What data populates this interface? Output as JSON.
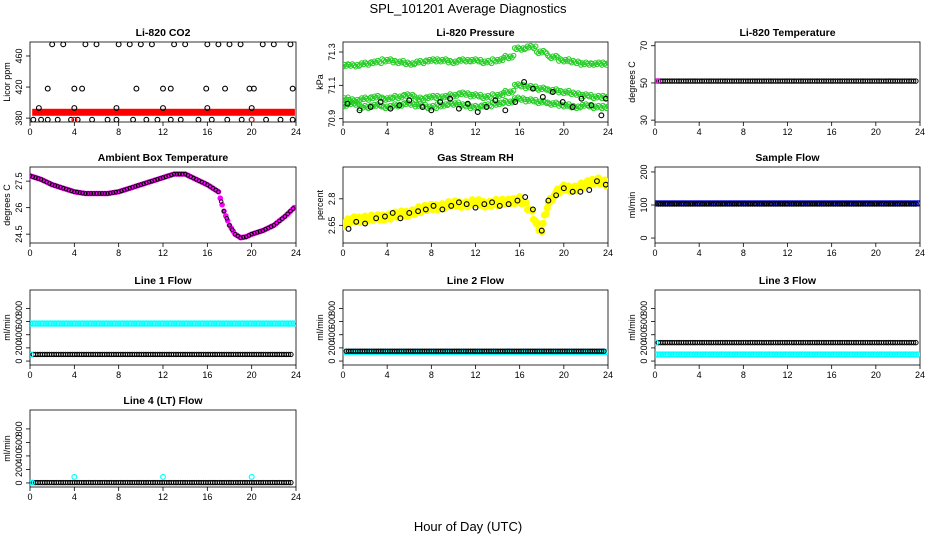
{
  "figure": {
    "title": "SPL_101201  Average Diagnostics",
    "xlabel": "Hour of Day (UTC)"
  },
  "chart_data": [
    {
      "type": "scatter",
      "title": "Li-820 CO2",
      "ylabel": "Licor ppm",
      "xlim": [
        0,
        24
      ],
      "xticks": [
        0,
        4,
        8,
        12,
        16,
        20,
        24
      ],
      "ylim": [
        375,
        478
      ],
      "yticks": [
        380,
        420,
        460
      ],
      "series": [
        {
          "name": "licor_bar",
          "color": "#ff0000",
          "marker": "thick-band",
          "constant": 387.5,
          "x_range": [
            0.2,
            23.9
          ]
        },
        {
          "name": "co2_open",
          "color": "#000000",
          "marker": "circle",
          "x": [
            2.0,
            3.0,
            5.0,
            6.0,
            8.0,
            9.0,
            10.0,
            11.0,
            13.0,
            14.0,
            16.0,
            17.0,
            18.0,
            19.0,
            21.0,
            22.0,
            23.5,
            0.3,
            1.0,
            1.6,
            2.5,
            3.7,
            4.3,
            5.6,
            7.0,
            7.8,
            9.3,
            10.5,
            11.5,
            12.7,
            13.6,
            15.2,
            16.4,
            17.8,
            19.1,
            20.0,
            21.3,
            22.6,
            23.7,
            1.6,
            4.0,
            4.7,
            9.6,
            12.0,
            12.7,
            15.9,
            17.6,
            19.8,
            20.2,
            23.7,
            0.8,
            4.0,
            7.8,
            12.0,
            16.0,
            20.0
          ],
          "y": [
            475,
            475,
            475,
            475,
            475,
            475,
            475,
            475,
            475,
            475,
            475,
            475,
            475,
            475,
            475,
            475,
            475,
            378,
            378,
            378,
            378,
            378,
            378,
            378,
            378,
            378,
            378,
            378,
            378,
            378,
            378,
            378,
            378,
            378,
            378,
            378,
            378,
            378,
            378,
            418,
            418,
            418,
            418,
            418,
            418,
            418,
            418,
            418,
            418,
            418,
            393,
            393,
            393,
            393,
            393,
            393
          ]
        },
        {
          "name": "co2_red",
          "color": "#ff0000",
          "marker": "circle",
          "x": [
            4.0,
            20.0
          ],
          "y": [
            378,
            378
          ]
        }
      ]
    },
    {
      "type": "scatter",
      "title": "Li-820 Pressure",
      "ylabel": "kPa",
      "xlim": [
        0,
        24
      ],
      "xticks": [
        0,
        4,
        8,
        12,
        16,
        20,
        24
      ],
      "ylim": [
        70.88,
        71.36
      ],
      "yticks": [
        70.9,
        71.1,
        71.3
      ],
      "series": [
        {
          "name": "p_high",
          "color": "#22cc22",
          "marker": "circle",
          "x": [
            0,
            1,
            2,
            3,
            4,
            5,
            6,
            7,
            8,
            9,
            10,
            11,
            12,
            13,
            14,
            15,
            16,
            17,
            18,
            19,
            20,
            21,
            22,
            23,
            24
          ],
          "y": [
            71.22,
            71.22,
            71.23,
            71.24,
            71.25,
            71.24,
            71.23,
            71.24,
            71.25,
            71.25,
            71.24,
            71.25,
            71.25,
            71.24,
            71.25,
            71.27,
            71.32,
            71.33,
            71.3,
            71.27,
            71.25,
            71.24,
            71.23,
            71.23,
            71.23
          ]
        },
        {
          "name": "p_mid",
          "color": "#22cc22",
          "marker": "circle",
          "x": [
            0,
            1,
            2,
            3,
            4,
            5,
            6,
            7,
            8,
            9,
            10,
            11,
            12,
            13,
            14,
            15,
            16,
            17,
            18,
            19,
            20,
            21,
            22,
            23,
            24
          ],
          "y": [
            71.02,
            71.01,
            71.02,
            71.03,
            71.02,
            71.03,
            71.04,
            71.02,
            71.03,
            71.03,
            71.04,
            71.05,
            71.04,
            71.03,
            71.04,
            71.06,
            71.1,
            71.09,
            71.08,
            71.07,
            71.06,
            71.05,
            71.04,
            71.03,
            71.03
          ]
        },
        {
          "name": "p_low",
          "color": "#22cc22",
          "marker": "circle",
          "x": [
            0,
            1,
            2,
            3,
            4,
            5,
            6,
            7,
            8,
            9,
            10,
            11,
            12,
            13,
            14,
            15,
            16,
            17,
            18,
            19,
            20,
            21,
            22,
            23,
            24
          ],
          "y": [
            70.98,
            70.99,
            70.97,
            70.98,
            70.97,
            70.98,
            70.99,
            70.98,
            70.97,
            70.98,
            70.99,
            70.98,
            70.97,
            70.98,
            70.99,
            71.0,
            71.02,
            71.01,
            71.0,
            70.99,
            70.98,
            70.97,
            70.98,
            70.97,
            70.97
          ]
        },
        {
          "name": "p_black",
          "color": "#000000",
          "marker": "circle",
          "x": [
            0.4,
            1.5,
            2.5,
            3.4,
            4.3,
            5.1,
            6.0,
            7.2,
            8.0,
            8.8,
            9.7,
            10.5,
            11.3,
            12.2,
            13.0,
            13.8,
            14.7,
            15.6,
            16.4,
            17.2,
            18.1,
            19.0,
            19.9,
            20.8,
            21.6,
            22.5,
            23.4,
            23.8
          ],
          "y": [
            70.99,
            70.95,
            70.97,
            71.0,
            70.96,
            70.98,
            71.01,
            70.97,
            70.95,
            71.0,
            71.02,
            70.96,
            70.99,
            70.94,
            70.97,
            71.01,
            70.95,
            71.0,
            71.12,
            71.08,
            71.03,
            71.06,
            71.0,
            70.97,
            71.02,
            70.98,
            70.92,
            71.02
          ]
        }
      ]
    },
    {
      "type": "scatter",
      "title": "Li-820 Temperature",
      "ylabel": "degrees C",
      "xlim": [
        0,
        24
      ],
      "xticks": [
        0,
        4,
        8,
        12,
        16,
        20,
        24
      ],
      "ylim": [
        29,
        72
      ],
      "yticks": [
        30,
        50,
        70
      ],
      "series": [
        {
          "name": "temp_licor",
          "color": "#000000",
          "marker": "circle",
          "constant": 51.0,
          "x_range": [
            0.3,
            23.7
          ]
        },
        {
          "name": "temp_magenta",
          "color": "#ff00ff",
          "marker": "circle",
          "x": [
            0.0,
            0.25
          ],
          "y": [
            51.0,
            51.0
          ]
        }
      ]
    },
    {
      "type": "scatter",
      "title": "Ambient Box Temperature",
      "ylabel": "degrees C",
      "xlim": [
        0,
        24
      ],
      "xticks": [
        0,
        4,
        8,
        12,
        16,
        20,
        24
      ],
      "ylim": [
        24.0,
        28.3
      ],
      "yticks": [
        24.5,
        26.0,
        27.5
      ],
      "series": [
        {
          "name": "box_temp",
          "color": "#ff00ff",
          "marker": "circle-on-magenta",
          "x": [
            0,
            1,
            2,
            3,
            4,
            5,
            6,
            7,
            8,
            9,
            10,
            11,
            12,
            13,
            14,
            15,
            16,
            17,
            17.5,
            18,
            18.5,
            19,
            19.5,
            20,
            21,
            22,
            23,
            24
          ],
          "y": [
            27.8,
            27.6,
            27.3,
            27.1,
            26.9,
            26.8,
            26.8,
            26.8,
            26.9,
            27.1,
            27.3,
            27.5,
            27.7,
            27.9,
            27.9,
            27.6,
            27.3,
            26.9,
            25.8,
            25.0,
            24.5,
            24.3,
            24.35,
            24.5,
            24.7,
            25.0,
            25.5,
            26.1
          ]
        }
      ]
    },
    {
      "type": "scatter",
      "title": "Gas Stream RH",
      "ylabel": "percent",
      "xlim": [
        0,
        24
      ],
      "xticks": [
        0,
        4,
        8,
        12,
        16,
        20,
        24
      ],
      "ylim": [
        2.55,
        2.98
      ],
      "yticks": [
        2.65,
        2.8
      ],
      "series": [
        {
          "name": "rh_yellow",
          "color": "#ffff00",
          "marker": "dense-band",
          "x": [
            0,
            1,
            2,
            3,
            4,
            5,
            6,
            7,
            8,
            9,
            10,
            11,
            12,
            13,
            14,
            15,
            16,
            17,
            17.5,
            18,
            18.5,
            19,
            20,
            21,
            22,
            23,
            24
          ],
          "y": [
            2.66,
            2.68,
            2.69,
            2.69,
            2.7,
            2.71,
            2.72,
            2.74,
            2.75,
            2.76,
            2.77,
            2.77,
            2.78,
            2.77,
            2.78,
            2.78,
            2.8,
            2.73,
            2.66,
            2.62,
            2.76,
            2.82,
            2.86,
            2.86,
            2.88,
            2.91,
            2.88
          ]
        },
        {
          "name": "rh_black",
          "color": "#000000",
          "marker": "circle",
          "x": [
            0.5,
            1.2,
            2.0,
            3.0,
            3.8,
            4.5,
            5.2,
            6.0,
            6.8,
            7.5,
            8.2,
            9.0,
            9.8,
            10.5,
            11.2,
            12.0,
            12.8,
            13.5,
            14.2,
            15.0,
            15.8,
            16.5,
            17.2,
            18.0,
            18.6,
            19.3,
            20.0,
            20.8,
            21.5,
            22.3,
            23.0,
            23.8
          ],
          "y": [
            2.63,
            2.67,
            2.66,
            2.69,
            2.7,
            2.72,
            2.69,
            2.72,
            2.73,
            2.74,
            2.76,
            2.74,
            2.76,
            2.78,
            2.77,
            2.75,
            2.77,
            2.78,
            2.76,
            2.77,
            2.79,
            2.81,
            2.74,
            2.62,
            2.79,
            2.82,
            2.86,
            2.84,
            2.84,
            2.85,
            2.9,
            2.88
          ]
        }
      ]
    },
    {
      "type": "scatter",
      "title": "Sample Flow",
      "ylabel": "ml/min",
      "xlim": [
        0,
        24
      ],
      "xticks": [
        0,
        4,
        8,
        12,
        16,
        20,
        24
      ],
      "ylim": [
        -15,
        215
      ],
      "yticks": [
        0,
        100,
        200
      ],
      "series": [
        {
          "name": "sample_blue",
          "color": "#0000cc",
          "marker": "band",
          "constant": 105,
          "x_range": [
            0.0,
            24.0
          ]
        },
        {
          "name": "sample_black",
          "color": "#000000",
          "marker": "circle",
          "constant": 103,
          "x_range": [
            0.3,
            23.7
          ]
        }
      ]
    },
    {
      "type": "scatter",
      "title": "Line 1 Flow",
      "ylabel": "ml/min",
      "xlim": [
        0,
        24
      ],
      "xticks": [
        0,
        4,
        8,
        12,
        16,
        20,
        24
      ],
      "ylim": [
        -60,
        1080
      ],
      "yticks": [
        0,
        200,
        400,
        600,
        800
      ],
      "series": [
        {
          "name": "line1_cyan",
          "color": "#00ffff",
          "marker": "band",
          "constant": 570,
          "x_range": [
            0.0,
            24.0
          ]
        },
        {
          "name": "line1_black",
          "color": "#000000",
          "marker": "circle",
          "constant": 100,
          "x_range": [
            0.3,
            23.7
          ]
        },
        {
          "name": "line1_cyan_start",
          "color": "#00ffff",
          "marker": "circle",
          "x": [
            0.1
          ],
          "y": [
            100
          ]
        }
      ]
    },
    {
      "type": "scatter",
      "title": "Line 2 Flow",
      "ylabel": "ml/min",
      "xlim": [
        0,
        24
      ],
      "xticks": [
        0,
        4,
        8,
        12,
        16,
        20,
        24
      ],
      "ylim": [
        -60,
        1080
      ],
      "yticks": [
        0,
        200,
        400,
        600,
        800
      ],
      "series": [
        {
          "name": "line2_cyan",
          "color": "#00ffff",
          "marker": "band",
          "constant": 140,
          "x_range": [
            0.0,
            24.0
          ]
        },
        {
          "name": "line2_black",
          "color": "#000000",
          "marker": "circle",
          "constant": 150,
          "x_range": [
            0.3,
            23.7
          ]
        }
      ]
    },
    {
      "type": "scatter",
      "title": "Line 3 Flow",
      "ylabel": "ml/min",
      "xlim": [
        0,
        24
      ],
      "xticks": [
        0,
        4,
        8,
        12,
        16,
        20,
        24
      ],
      "ylim": [
        -60,
        1080
      ],
      "yticks": [
        0,
        200,
        400,
        600,
        800
      ],
      "series": [
        {
          "name": "line3_cyan",
          "color": "#00ffff",
          "marker": "band",
          "constant": 100,
          "x_range": [
            0.0,
            24.0
          ]
        },
        {
          "name": "line3_black",
          "color": "#000000",
          "marker": "circle",
          "constant": 280,
          "x_range": [
            0.3,
            23.7
          ]
        },
        {
          "name": "line3_cyan_start",
          "color": "#00ffff",
          "marker": "circle",
          "x": [
            0.1
          ],
          "y": [
            280
          ]
        }
      ]
    },
    {
      "type": "scatter",
      "title": "Line 4 (LT) Flow",
      "ylabel": "ml/min",
      "xlim": [
        0,
        24
      ],
      "xticks": [
        0,
        4,
        8,
        12,
        16,
        20,
        24
      ],
      "ylim": [
        -60,
        1080
      ],
      "yticks": [
        0,
        200,
        400,
        600,
        800
      ],
      "series": [
        {
          "name": "line4_black",
          "color": "#000000",
          "marker": "circle",
          "constant": 5,
          "x_range": [
            0.3,
            23.7
          ]
        },
        {
          "name": "line4_cyan",
          "color": "#00ffff",
          "marker": "circle",
          "x": [
            0.0,
            0.2,
            4.0,
            12.0,
            20.0
          ],
          "y": [
            5,
            5,
            90,
            90,
            90
          ]
        }
      ]
    }
  ]
}
